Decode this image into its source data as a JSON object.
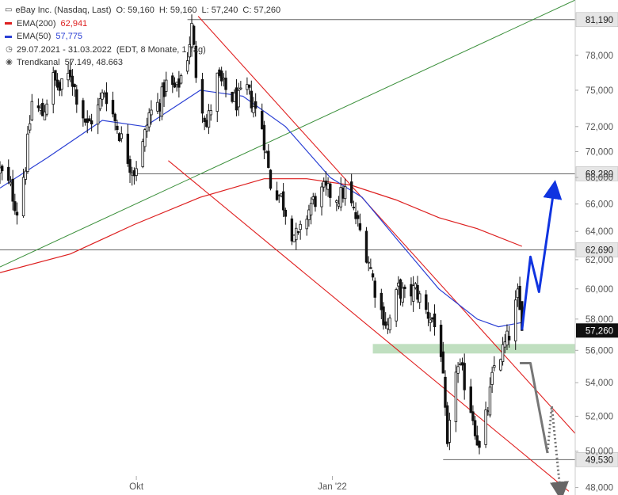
{
  "legend": {
    "symbol_line": "eBay Inc. (Nasdaq, Last)",
    "open": "O: 59,160",
    "high": "H: 59,160",
    "low": "L: 57,240",
    "close": "C: 57,260",
    "ema200_label": "EMA(200)",
    "ema200_value": "62,941",
    "ema50_label": "EMA(50)",
    "ema50_value": "57,775",
    "date_range": "29.07.2021 - 31.03.2022",
    "period_note": "(EDT, 8 Monate, 1 Tag)",
    "trendkanal_label": "Trendkanal",
    "trendkanal_values": "57.149, 48.663",
    "colors": {
      "ema200": "#dd1f1f",
      "ema50": "#2a3fd4",
      "price": "#111111"
    }
  },
  "chart_data": {
    "type": "candlestick",
    "title": "eBay Inc. (Nasdaq, Last)",
    "y_axis": {
      "ticks": [
        48,
        50,
        52,
        54,
        56,
        58,
        60,
        62,
        64,
        66,
        68,
        70,
        72,
        75,
        78
      ],
      "tick_labels": [
        "48,000",
        "50,000",
        "52,000",
        "54,000",
        "56,000",
        "58,000",
        "60,000",
        "62,000",
        "64,000",
        "66,000",
        "68,000",
        "70,000",
        "72,000",
        "75,000",
        "78,000"
      ],
      "scale": "log",
      "range": [
        47.6,
        83.0
      ]
    },
    "x_axis": {
      "range": [
        "2021-07-29",
        "2022-04-25"
      ],
      "ticks": [
        {
          "label": "Okt",
          "date": "2021-10-01"
        },
        {
          "label": "Jan '22",
          "date": "2022-01-01"
        }
      ]
    },
    "close_path": [
      [
        "2021-07-29",
        68.5
      ],
      [
        "2021-08-03",
        67.2
      ],
      [
        "2021-08-06",
        65.5
      ],
      [
        "2021-08-10",
        69.0
      ],
      [
        "2021-08-13",
        74.0
      ],
      [
        "2021-08-18",
        73.0
      ],
      [
        "2021-08-23",
        76.0
      ],
      [
        "2021-08-26",
        75.0
      ],
      [
        "2021-08-31",
        76.5
      ],
      [
        "2021-09-03",
        74.5
      ],
      [
        "2021-09-08",
        72.0
      ],
      [
        "2021-09-13",
        73.5
      ],
      [
        "2021-09-16",
        75.0
      ],
      [
        "2021-09-21",
        72.5
      ],
      [
        "2021-09-24",
        71.0
      ],
      [
        "2021-09-28",
        69.0
      ],
      [
        "2021-09-30",
        68.5
      ],
      [
        "2021-10-04",
        70.5
      ],
      [
        "2021-10-07",
        73.0
      ],
      [
        "2021-10-12",
        74.0
      ],
      [
        "2021-10-15",
        75.5
      ],
      [
        "2021-10-20",
        75.0
      ],
      [
        "2021-10-25",
        78.0
      ],
      [
        "2021-10-27",
        80.5
      ],
      [
        "2021-10-29",
        76.5
      ],
      [
        "2021-11-03",
        72.0
      ],
      [
        "2021-11-08",
        76.0
      ],
      [
        "2021-11-12",
        75.0
      ],
      [
        "2021-11-17",
        74.0
      ],
      [
        "2021-11-22",
        75.0
      ],
      [
        "2021-11-29",
        72.0
      ],
      [
        "2021-12-03",
        67.5
      ],
      [
        "2021-12-08",
        66.5
      ],
      [
        "2021-12-13",
        64.0
      ],
      [
        "2021-12-16",
        63.5
      ],
      [
        "2021-12-22",
        66.0
      ],
      [
        "2021-12-28",
        67.0
      ],
      [
        "2022-01-04",
        66.5
      ],
      [
        "2022-01-07",
        67.0
      ],
      [
        "2022-01-12",
        65.0
      ],
      [
        "2022-01-18",
        62.0
      ],
      [
        "2022-01-21",
        60.0
      ],
      [
        "2022-01-24",
        58.5
      ],
      [
        "2022-01-27",
        57.5
      ],
      [
        "2022-02-01",
        60.0
      ],
      [
        "2022-02-04",
        59.5
      ],
      [
        "2022-02-09",
        60.0
      ],
      [
        "2022-02-14",
        58.5
      ],
      [
        "2022-02-17",
        58.0
      ],
      [
        "2022-02-21",
        56.0
      ],
      [
        "2022-02-24",
        50.0
      ],
      [
        "2022-02-28",
        55.0
      ],
      [
        "2022-03-03",
        54.5
      ],
      [
        "2022-03-08",
        52.0
      ],
      [
        "2022-03-11",
        50.0
      ],
      [
        "2022-03-15",
        52.5
      ],
      [
        "2022-03-18",
        55.0
      ],
      [
        "2022-03-22",
        56.0
      ],
      [
        "2022-03-25",
        57.0
      ],
      [
        "2022-03-29",
        59.5
      ],
      [
        "2022-03-31",
        57.26
      ]
    ],
    "ema200": [
      [
        "2021-07-29",
        61.1
      ],
      [
        "2021-08-31",
        62.4
      ],
      [
        "2021-09-30",
        64.5
      ],
      [
        "2021-10-31",
        66.5
      ],
      [
        "2021-11-30",
        67.9
      ],
      [
        "2021-12-20",
        67.9
      ],
      [
        "2022-01-10",
        67.4
      ],
      [
        "2022-01-31",
        66.3
      ],
      [
        "2022-02-20",
        65.0
      ],
      [
        "2022-03-10",
        64.2
      ],
      [
        "2022-03-31",
        62.941
      ]
    ],
    "ema50": [
      [
        "2021-07-29",
        67.2
      ],
      [
        "2021-08-20",
        69.5
      ],
      [
        "2021-09-15",
        72.5
      ],
      [
        "2021-10-05",
        72.0
      ],
      [
        "2021-10-31",
        75.0
      ],
      [
        "2021-11-20",
        74.5
      ],
      [
        "2021-12-10",
        72.0
      ],
      [
        "2021-12-31",
        68.0
      ],
      [
        "2022-01-15",
        66.5
      ],
      [
        "2022-01-31",
        63.5
      ],
      [
        "2022-02-20",
        60.0
      ],
      [
        "2022-03-10",
        58.0
      ],
      [
        "2022-03-20",
        57.5
      ],
      [
        "2022-03-31",
        57.775
      ]
    ],
    "horizontal_levels": [
      {
        "value": 81.19,
        "label": "81,190"
      },
      {
        "value": 68.28,
        "label": "68,280"
      },
      {
        "value": 62.69,
        "label": "62,690"
      },
      {
        "value": 49.53,
        "label": "49,530"
      }
    ],
    "last_price": {
      "value": 57.26,
      "label": "57,260"
    },
    "support_zone": {
      "from": 55.8,
      "to": 56.4,
      "start": "2022-01-20",
      "color": "#b9dcb9"
    },
    "trend_channel_upper": [
      [
        "2021-10-30",
        81.5
      ],
      [
        "2022-04-25",
        51.0
      ]
    ],
    "trend_channel_lower": [
      [
        "2021-10-16",
        69.3
      ],
      [
        "2022-04-22",
        47.8
      ]
    ],
    "green_trendline": [
      [
        "2021-07-29",
        61.5
      ],
      [
        "2022-04-25",
        83.0
      ]
    ],
    "scenario_bullish": [
      [
        "2022-03-31",
        57.3
      ],
      [
        "2022-04-04",
        62.2
      ],
      [
        "2022-04-08",
        59.8
      ],
      [
        "2022-04-15",
        67.1
      ]
    ],
    "scenario_bearish": [
      [
        "2022-03-30",
        55.2
      ],
      [
        "2022-04-04",
        55.2
      ],
      [
        "2022-04-12",
        49.9
      ]
    ],
    "scenario_bearish_dotted": [
      [
        "2022-04-12",
        49.9
      ],
      [
        "2022-04-14",
        52.6
      ],
      [
        "2022-04-18",
        47.8
      ]
    ]
  }
}
